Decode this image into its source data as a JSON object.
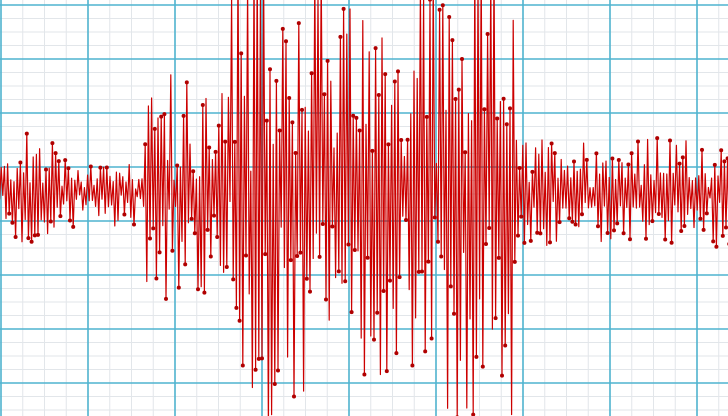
{
  "image": {
    "subject": "seismograph-waveform",
    "colors": {
      "background": "#ffffff",
      "grid_major": "#4fb3cf",
      "grid_minor": "#e2e6ea",
      "trace": "#cc0000",
      "trace_dot": "#b00000"
    }
  }
}
